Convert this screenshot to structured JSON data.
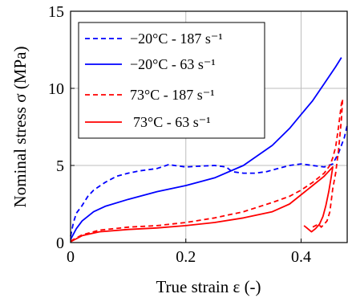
{
  "chart_data": {
    "type": "line",
    "xlabel": "True strain ε (-)",
    "ylabel": "Nominal stress σ (MPa)",
    "xlim": [
      0,
      0.48
    ],
    "ylim": [
      0,
      15
    ],
    "x_ticks": [
      "0",
      "0.2",
      "0.4"
    ],
    "y_ticks": [
      "0",
      "5",
      "10",
      "15"
    ],
    "x_tick_values": [
      0,
      0.2,
      0.4
    ],
    "y_tick_values": [
      0,
      5,
      10,
      15
    ],
    "grid": true,
    "legend_position": "top-left",
    "series": [
      {
        "name": "−20°C - 187 s⁻¹",
        "color": "#0000ff",
        "dash": "dashed",
        "points": [
          [
            0,
            0.4
          ],
          [
            0.005,
            1.3
          ],
          [
            0.01,
            1.9
          ],
          [
            0.02,
            2.4
          ],
          [
            0.03,
            3.0
          ],
          [
            0.04,
            3.4
          ],
          [
            0.06,
            3.9
          ],
          [
            0.08,
            4.3
          ],
          [
            0.1,
            4.5
          ],
          [
            0.12,
            4.65
          ],
          [
            0.15,
            4.8
          ],
          [
            0.17,
            5.05
          ],
          [
            0.2,
            4.9
          ],
          [
            0.22,
            4.95
          ],
          [
            0.25,
            5.0
          ],
          [
            0.27,
            4.9
          ],
          [
            0.28,
            4.6
          ],
          [
            0.3,
            4.5
          ],
          [
            0.32,
            4.5
          ],
          [
            0.34,
            4.6
          ],
          [
            0.36,
            4.8
          ],
          [
            0.38,
            5.0
          ],
          [
            0.4,
            5.1
          ],
          [
            0.42,
            5.0
          ],
          [
            0.44,
            4.9
          ],
          [
            0.455,
            5.1
          ],
          [
            0.465,
            5.8
          ],
          [
            0.475,
            6.8
          ],
          [
            0.48,
            7.6
          ]
        ]
      },
      {
        "name": "−20°C - 63 s⁻¹",
        "color": "#0000ff",
        "dash": "solid",
        "points": [
          [
            0,
            0.2
          ],
          [
            0.01,
            0.9
          ],
          [
            0.02,
            1.4
          ],
          [
            0.04,
            2.0
          ],
          [
            0.06,
            2.35
          ],
          [
            0.1,
            2.8
          ],
          [
            0.15,
            3.3
          ],
          [
            0.2,
            3.7
          ],
          [
            0.25,
            4.2
          ],
          [
            0.3,
            5.0
          ],
          [
            0.35,
            6.3
          ],
          [
            0.38,
            7.4
          ],
          [
            0.4,
            8.3
          ],
          [
            0.42,
            9.2
          ],
          [
            0.44,
            10.3
          ],
          [
            0.46,
            11.4
          ],
          [
            0.47,
            12.0
          ]
        ]
      },
      {
        "name": "73°C - 187 s⁻¹",
        "color": "#ff0000",
        "dash": "dashed",
        "points": [
          [
            0,
            0.1
          ],
          [
            0.02,
            0.5
          ],
          [
            0.05,
            0.8
          ],
          [
            0.1,
            1.0
          ],
          [
            0.15,
            1.1
          ],
          [
            0.2,
            1.3
          ],
          [
            0.25,
            1.6
          ],
          [
            0.3,
            2.0
          ],
          [
            0.35,
            2.6
          ],
          [
            0.38,
            3.0
          ],
          [
            0.4,
            3.4
          ],
          [
            0.42,
            3.9
          ],
          [
            0.44,
            4.5
          ],
          [
            0.45,
            5.0
          ],
          [
            0.455,
            5.5
          ],
          [
            0.46,
            6.2
          ],
          [
            0.465,
            7.5
          ],
          [
            0.47,
            9.0
          ],
          [
            0.472,
            9.3
          ],
          [
            0.47,
            8.0
          ],
          [
            0.465,
            6.0
          ],
          [
            0.46,
            4.5
          ],
          [
            0.455,
            3.5
          ],
          [
            0.45,
            2.0
          ],
          [
            0.445,
            1.4
          ],
          [
            0.44,
            1.2
          ],
          [
            0.435,
            1.0
          ],
          [
            0.43,
            1.2
          ],
          [
            0.42,
            1.0
          ]
        ]
      },
      {
        "name": "73°C - 63 s⁻¹",
        "color": "#ff0000",
        "dash": "solid",
        "points": [
          [
            0,
            0.05
          ],
          [
            0.02,
            0.45
          ],
          [
            0.05,
            0.7
          ],
          [
            0.1,
            0.85
          ],
          [
            0.15,
            0.95
          ],
          [
            0.2,
            1.1
          ],
          [
            0.25,
            1.3
          ],
          [
            0.3,
            1.6
          ],
          [
            0.35,
            2.0
          ],
          [
            0.38,
            2.5
          ],
          [
            0.4,
            3.1
          ],
          [
            0.42,
            3.7
          ],
          [
            0.44,
            4.3
          ],
          [
            0.45,
            4.7
          ],
          [
            0.455,
            4.9
          ],
          [
            0.452,
            4.2
          ],
          [
            0.448,
            3.3
          ],
          [
            0.443,
            2.4
          ],
          [
            0.438,
            1.7
          ],
          [
            0.432,
            1.2
          ],
          [
            0.425,
            0.9
          ],
          [
            0.418,
            0.7
          ],
          [
            0.41,
            0.95
          ],
          [
            0.405,
            1.1
          ]
        ]
      }
    ]
  }
}
